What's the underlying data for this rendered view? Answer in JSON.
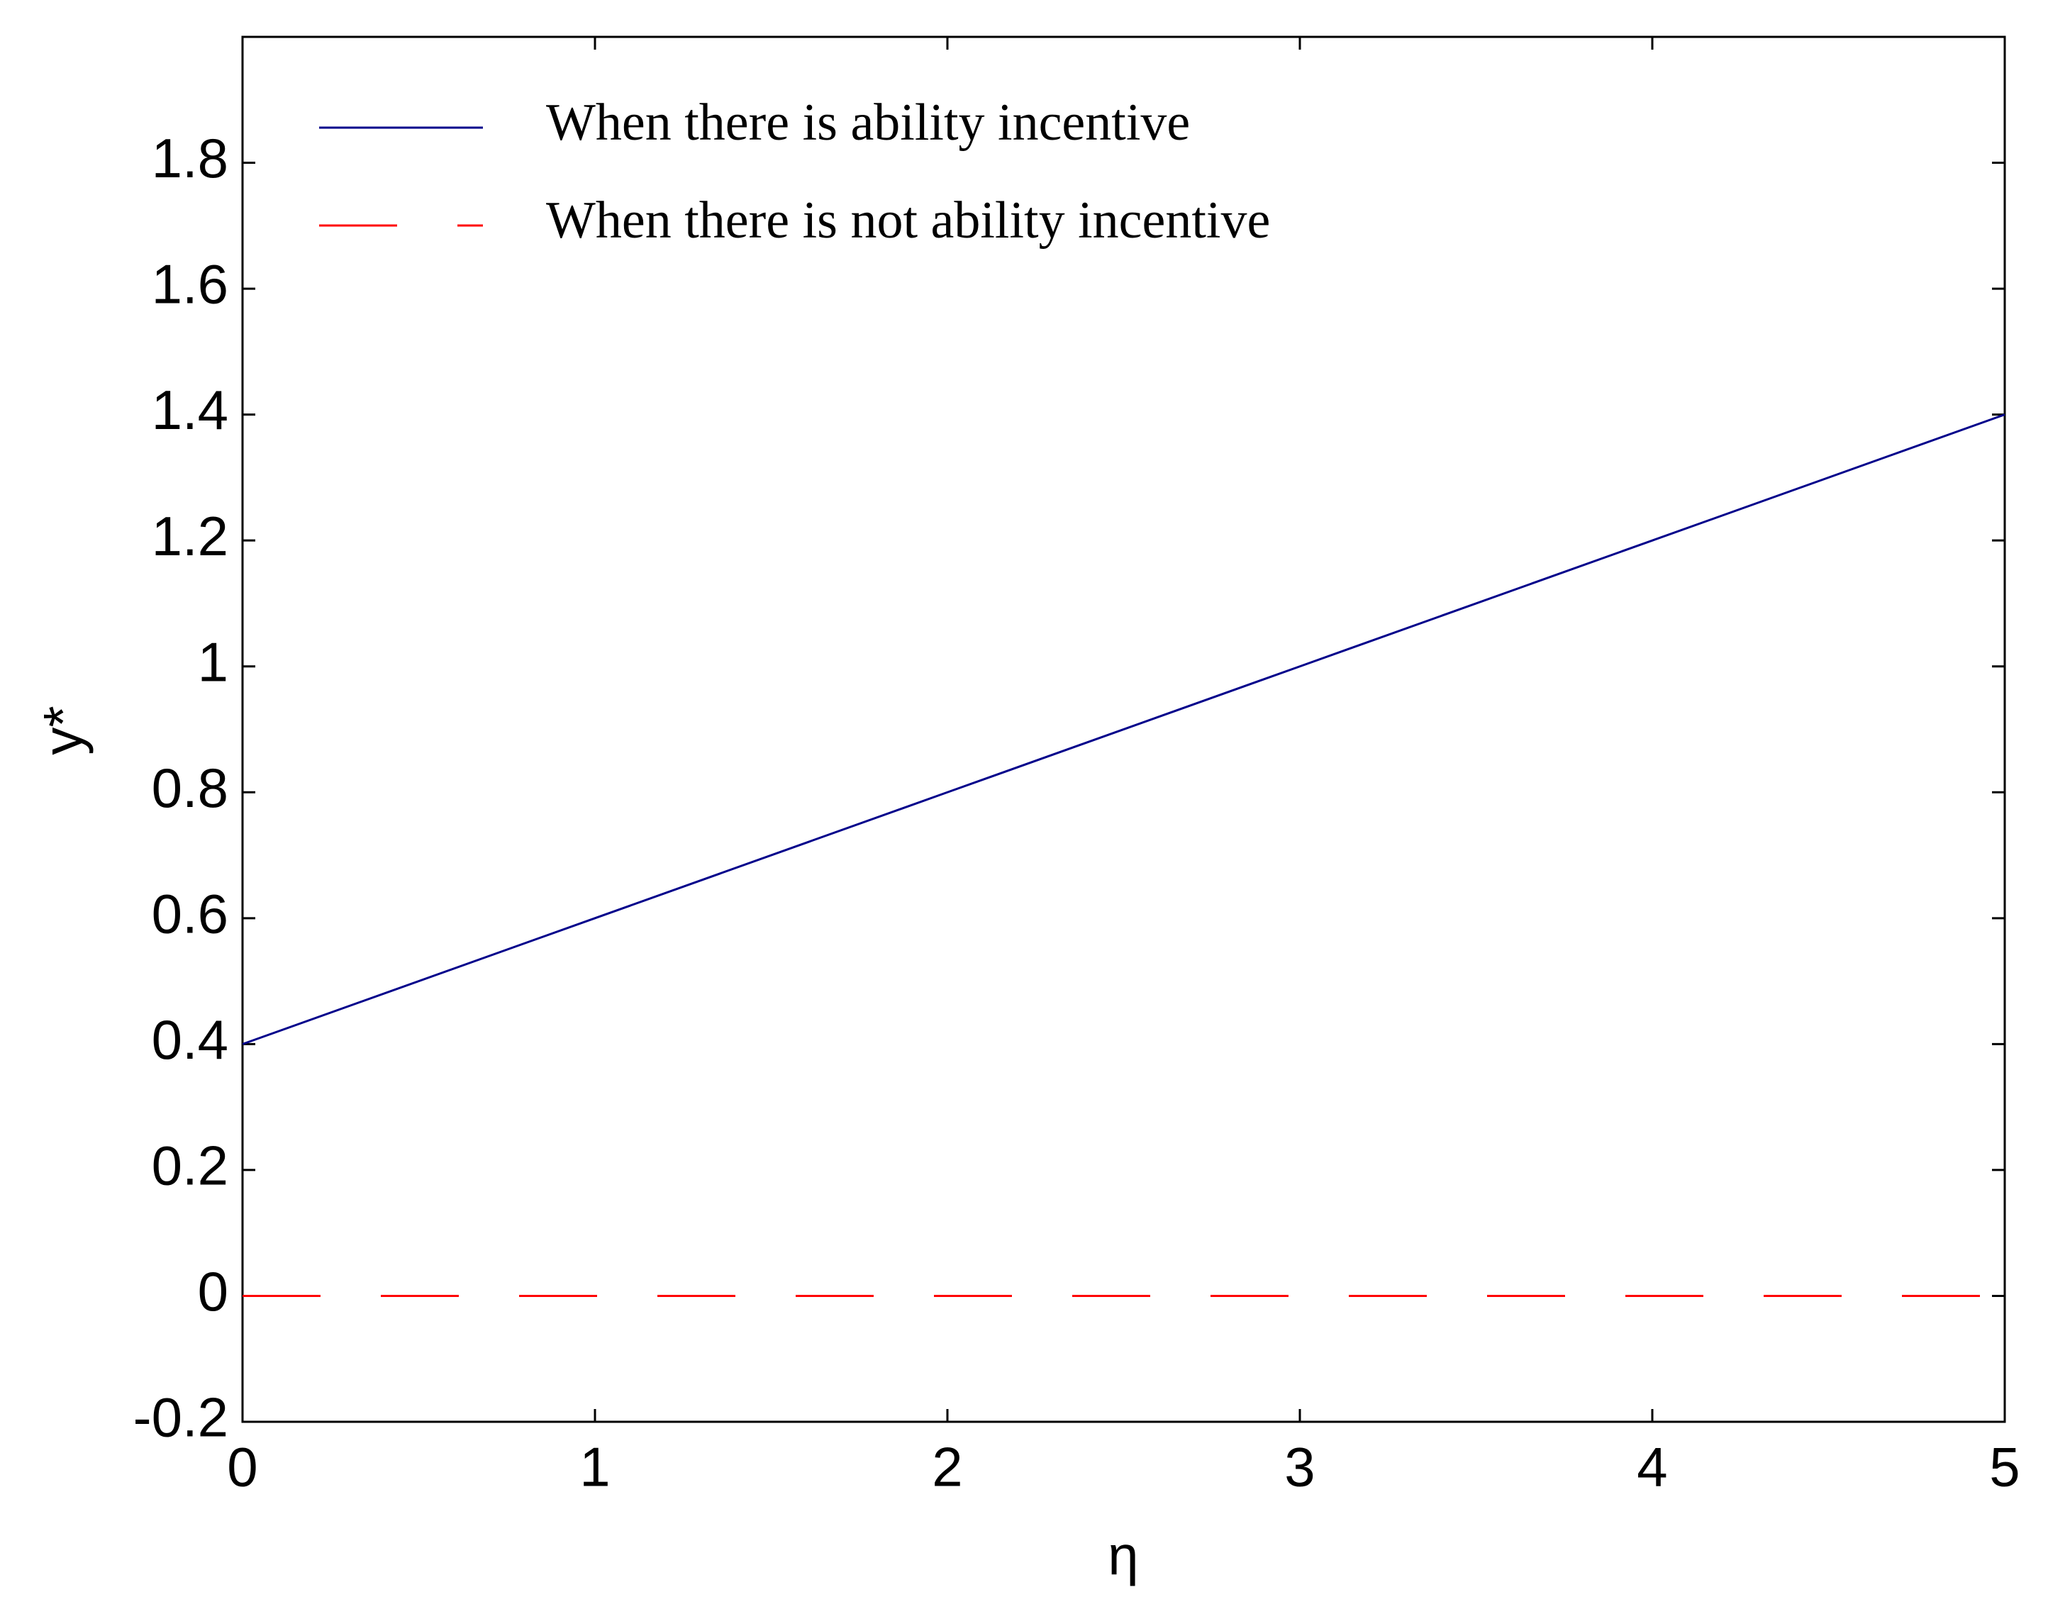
{
  "chart_data": {
    "type": "line",
    "x": [
      0,
      1,
      2,
      3,
      4,
      5
    ],
    "series": [
      {
        "name": "When there is ability incentive",
        "color": "#00008b",
        "dash": "solid",
        "values": [
          0.4,
          0.6,
          0.8,
          1,
          1.2,
          1.4
        ]
      },
      {
        "name": "When there is not ability incentive",
        "color": "#ff0000",
        "dash": "dashed",
        "values": [
          0,
          0,
          0,
          0,
          0,
          0
        ]
      }
    ],
    "xlabel": "η",
    "ylabel": "y*",
    "xlim": [
      0,
      5
    ],
    "xticks": [
      0,
      1,
      2,
      3,
      4,
      5
    ],
    "ylim": [
      -0.2,
      2
    ],
    "yticks": [
      -0.2,
      0,
      0.2,
      0.4,
      0.6,
      0.8,
      1,
      1.2,
      1.4,
      1.6,
      1.8
    ],
    "legend": "upper-left",
    "grid": false
  }
}
